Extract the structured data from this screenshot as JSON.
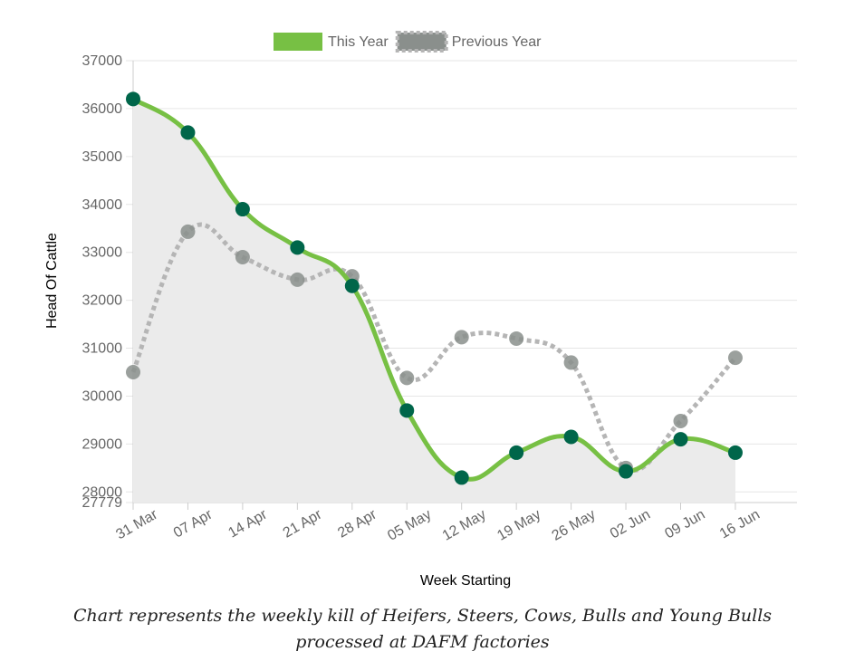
{
  "chart_data": {
    "type": "line",
    "categories": [
      "31 Mar",
      "07 Apr",
      "14 Apr",
      "21 Apr",
      "28 Apr",
      "05 May",
      "12 May",
      "19 May",
      "26 May",
      "02 Jun",
      "09 Jun",
      "16 Jun"
    ],
    "series": [
      {
        "name": "This Year",
        "color": "#77c044",
        "marker_color": "#00664a",
        "fill": "#ebebeb",
        "values": [
          36200,
          35500,
          33900,
          33100,
          32300,
          29700,
          28300,
          28820,
          29150,
          28430,
          29100,
          28820
        ]
      },
      {
        "name": "Previous Year",
        "color": "#b5b5b5",
        "marker_color": "#8a8f8c",
        "dashed": true,
        "values": [
          30500,
          33430,
          32900,
          32430,
          32500,
          30380,
          31230,
          31200,
          30700,
          28500,
          29480,
          30800
        ]
      }
    ],
    "ylim": [
      27779,
      37000
    ],
    "yticks": [
      27779,
      28000,
      29000,
      30000,
      31000,
      32000,
      33000,
      34000,
      35000,
      36000,
      37000
    ],
    "ylabel": "Head Of Cattle",
    "xlabel": "Week Starting",
    "grid": true,
    "legend": "top",
    "caption": "Chart represents the weekly kill of Heifers, Steers, Cows, Bulls and Young Bulls processed at DAFM factories"
  }
}
